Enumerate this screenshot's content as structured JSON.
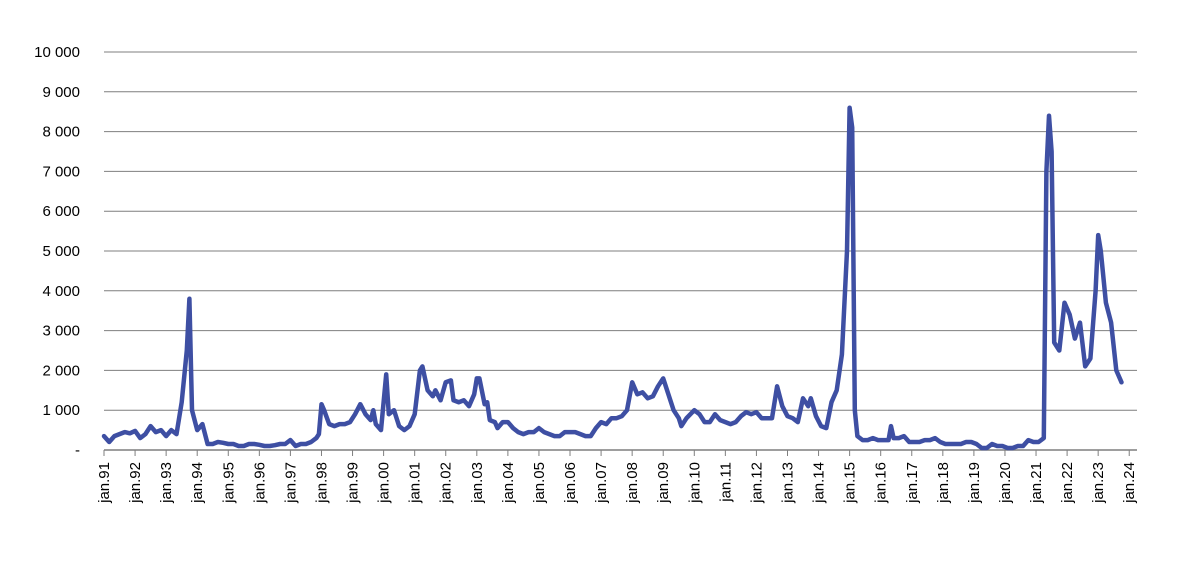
{
  "chart_data": {
    "type": "line",
    "title": "",
    "xlabel": "",
    "ylabel": "",
    "ylim": [
      0,
      10000
    ],
    "y_ticks": [
      {
        "value": 0,
        "label": "-"
      },
      {
        "value": 1000,
        "label": "1 000"
      },
      {
        "value": 2000,
        "label": "2 000"
      },
      {
        "value": 3000,
        "label": "3 000"
      },
      {
        "value": 4000,
        "label": "4 000"
      },
      {
        "value": 5000,
        "label": "5 000"
      },
      {
        "value": 6000,
        "label": "6 000"
      },
      {
        "value": 7000,
        "label": "7 000"
      },
      {
        "value": 8000,
        "label": "8 000"
      },
      {
        "value": 9000,
        "label": "9 000"
      },
      {
        "value": 10000,
        "label": "10 000"
      }
    ],
    "x_range": [
      "1991-01",
      "2024-04"
    ],
    "x_tick_labels": [
      "jan.91",
      "jan.92",
      "jan.93",
      "jan.94",
      "jan.95",
      "jan.96",
      "jan.97",
      "jan.98",
      "jan.99",
      "jan.00",
      "jan.01",
      "jan.02",
      "jan.03",
      "jan.04",
      "jan.05",
      "jan.06",
      "jan.07",
      "jan.08",
      "jan.09",
      "jan.10",
      "jan.11",
      "jan.12",
      "jan.13",
      "jan.14",
      "jan.15",
      "jan.16",
      "jan.17",
      "jan.18",
      "jan.19",
      "jan.20",
      "jan.21",
      "jan.22",
      "jan.23",
      "jan.24"
    ],
    "grid": true,
    "legend": "none",
    "colors": {
      "series": "#3e4fa3",
      "grid": "#7f7f7f",
      "axis": "#7f7f7f"
    },
    "series": [
      {
        "values": [
          [
            "1991-01",
            350
          ],
          [
            "1991-03",
            200
          ],
          [
            "1991-05",
            350
          ],
          [
            "1991-07",
            400
          ],
          [
            "1991-09",
            450
          ],
          [
            "1991-11",
            420
          ],
          [
            "1992-01",
            480
          ],
          [
            "1992-03",
            300
          ],
          [
            "1992-05",
            400
          ],
          [
            "1992-07",
            600
          ],
          [
            "1992-09",
            450
          ],
          [
            "1992-11",
            500
          ],
          [
            "1993-01",
            350
          ],
          [
            "1993-03",
            500
          ],
          [
            "1993-05",
            400
          ],
          [
            "1993-07",
            1200
          ],
          [
            "1993-09",
            2500
          ],
          [
            "1993-10",
            3800
          ],
          [
            "1993-11",
            1000
          ],
          [
            "1994-01",
            500
          ],
          [
            "1994-03",
            650
          ],
          [
            "1994-05",
            150
          ],
          [
            "1994-07",
            150
          ],
          [
            "1994-09",
            200
          ],
          [
            "1994-11",
            180
          ],
          [
            "1995-01",
            150
          ],
          [
            "1995-03",
            150
          ],
          [
            "1995-05",
            100
          ],
          [
            "1995-07",
            100
          ],
          [
            "1995-09",
            150
          ],
          [
            "1995-11",
            150
          ],
          [
            "1996-01",
            130
          ],
          [
            "1996-03",
            100
          ],
          [
            "1996-05",
            100
          ],
          [
            "1996-07",
            120
          ],
          [
            "1996-09",
            150
          ],
          [
            "1996-11",
            150
          ],
          [
            "1997-01",
            250
          ],
          [
            "1997-03",
            100
          ],
          [
            "1997-05",
            150
          ],
          [
            "1997-07",
            150
          ],
          [
            "1997-09",
            200
          ],
          [
            "1997-11",
            300
          ],
          [
            "1997-12",
            400
          ],
          [
            "1998-01",
            1150
          ],
          [
            "1998-02",
            1000
          ],
          [
            "1998-04",
            650
          ],
          [
            "1998-06",
            600
          ],
          [
            "1998-08",
            650
          ],
          [
            "1998-10",
            650
          ],
          [
            "1998-12",
            700
          ],
          [
            "1999-02",
            900
          ],
          [
            "1999-04",
            1150
          ],
          [
            "1999-06",
            900
          ],
          [
            "1999-08",
            750
          ],
          [
            "1999-09",
            1000
          ],
          [
            "1999-10",
            650
          ],
          [
            "1999-12",
            500
          ],
          [
            "2000-02",
            1900
          ],
          [
            "2000-03",
            900
          ],
          [
            "2000-05",
            1000
          ],
          [
            "2000-07",
            600
          ],
          [
            "2000-09",
            500
          ],
          [
            "2000-11",
            600
          ],
          [
            "2001-01",
            900
          ],
          [
            "2001-03",
            2000
          ],
          [
            "2001-04",
            2100
          ],
          [
            "2001-06",
            1500
          ],
          [
            "2001-08",
            1350
          ],
          [
            "2001-09",
            1500
          ],
          [
            "2001-11",
            1250
          ],
          [
            "2002-01",
            1700
          ],
          [
            "2002-03",
            1750
          ],
          [
            "2002-04",
            1250
          ],
          [
            "2002-06",
            1200
          ],
          [
            "2002-08",
            1250
          ],
          [
            "2002-10",
            1100
          ],
          [
            "2002-12",
            1400
          ],
          [
            "2003-01",
            1800
          ],
          [
            "2003-02",
            1800
          ],
          [
            "2003-04",
            1150
          ],
          [
            "2003-05",
            1200
          ],
          [
            "2003-06",
            750
          ],
          [
            "2003-08",
            700
          ],
          [
            "2003-09",
            550
          ],
          [
            "2003-11",
            700
          ],
          [
            "2004-01",
            700
          ],
          [
            "2004-03",
            550
          ],
          [
            "2004-05",
            450
          ],
          [
            "2004-07",
            400
          ],
          [
            "2004-09",
            450
          ],
          [
            "2004-11",
            450
          ],
          [
            "2005-01",
            550
          ],
          [
            "2005-03",
            450
          ],
          [
            "2005-05",
            400
          ],
          [
            "2005-07",
            350
          ],
          [
            "2005-09",
            350
          ],
          [
            "2005-11",
            450
          ],
          [
            "2006-01",
            450
          ],
          [
            "2006-03",
            450
          ],
          [
            "2006-05",
            400
          ],
          [
            "2006-07",
            350
          ],
          [
            "2006-09",
            350
          ],
          [
            "2006-11",
            550
          ],
          [
            "2007-01",
            700
          ],
          [
            "2007-03",
            650
          ],
          [
            "2007-05",
            800
          ],
          [
            "2007-07",
            800
          ],
          [
            "2007-09",
            850
          ],
          [
            "2007-11",
            1000
          ],
          [
            "2008-01",
            1700
          ],
          [
            "2008-03",
            1400
          ],
          [
            "2008-05",
            1450
          ],
          [
            "2008-07",
            1300
          ],
          [
            "2008-09",
            1350
          ],
          [
            "2008-11",
            1600
          ],
          [
            "2009-01",
            1800
          ],
          [
            "2009-03",
            1400
          ],
          [
            "2009-05",
            1000
          ],
          [
            "2009-07",
            800
          ],
          [
            "2009-08",
            600
          ],
          [
            "2009-10",
            800
          ],
          [
            "2010-01",
            1000
          ],
          [
            "2010-03",
            900
          ],
          [
            "2010-05",
            700
          ],
          [
            "2010-07",
            700
          ],
          [
            "2010-09",
            900
          ],
          [
            "2010-11",
            750
          ],
          [
            "2011-01",
            700
          ],
          [
            "2011-03",
            650
          ],
          [
            "2011-05",
            700
          ],
          [
            "2011-07",
            850
          ],
          [
            "2011-09",
            950
          ],
          [
            "2011-11",
            900
          ],
          [
            "2012-01",
            950
          ],
          [
            "2012-03",
            800
          ],
          [
            "2012-05",
            800
          ],
          [
            "2012-07",
            800
          ],
          [
            "2012-09",
            1600
          ],
          [
            "2012-11",
            1100
          ],
          [
            "2013-01",
            850
          ],
          [
            "2013-03",
            800
          ],
          [
            "2013-05",
            700
          ],
          [
            "2013-07",
            1300
          ],
          [
            "2013-09",
            1100
          ],
          [
            "2013-10",
            1300
          ],
          [
            "2013-12",
            850
          ],
          [
            "2014-02",
            600
          ],
          [
            "2014-04",
            550
          ],
          [
            "2014-06",
            1200
          ],
          [
            "2014-08",
            1500
          ],
          [
            "2014-10",
            2400
          ],
          [
            "2014-12",
            5000
          ],
          [
            "2015-01",
            8600
          ],
          [
            "2015-02",
            8100
          ],
          [
            "2015-03",
            1000
          ],
          [
            "2015-04",
            350
          ],
          [
            "2015-06",
            250
          ],
          [
            "2015-08",
            250
          ],
          [
            "2015-10",
            300
          ],
          [
            "2015-12",
            250
          ],
          [
            "2016-02",
            250
          ],
          [
            "2016-04",
            250
          ],
          [
            "2016-05",
            600
          ],
          [
            "2016-06",
            300
          ],
          [
            "2016-08",
            300
          ],
          [
            "2016-10",
            350
          ],
          [
            "2016-12",
            200
          ],
          [
            "2017-02",
            200
          ],
          [
            "2017-04",
            200
          ],
          [
            "2017-06",
            250
          ],
          [
            "2017-08",
            250
          ],
          [
            "2017-10",
            300
          ],
          [
            "2017-12",
            200
          ],
          [
            "2018-02",
            150
          ],
          [
            "2018-04",
            150
          ],
          [
            "2018-06",
            150
          ],
          [
            "2018-08",
            150
          ],
          [
            "2018-10",
            200
          ],
          [
            "2018-12",
            200
          ],
          [
            "2019-02",
            150
          ],
          [
            "2019-04",
            50
          ],
          [
            "2019-06",
            50
          ],
          [
            "2019-08",
            150
          ],
          [
            "2019-10",
            100
          ],
          [
            "2019-12",
            100
          ],
          [
            "2020-02",
            50
          ],
          [
            "2020-04",
            50
          ],
          [
            "2020-06",
            100
          ],
          [
            "2020-08",
            100
          ],
          [
            "2020-10",
            250
          ],
          [
            "2020-12",
            200
          ],
          [
            "2021-02",
            200
          ],
          [
            "2021-04",
            300
          ],
          [
            "2021-05",
            7000
          ],
          [
            "2021-06",
            8400
          ],
          [
            "2021-07",
            7500
          ],
          [
            "2021-08",
            2700
          ],
          [
            "2021-10",
            2500
          ],
          [
            "2021-12",
            3700
          ],
          [
            "2022-02",
            3400
          ],
          [
            "2022-04",
            2800
          ],
          [
            "2022-06",
            3200
          ],
          [
            "2022-08",
            2100
          ],
          [
            "2022-10",
            2300
          ],
          [
            "2022-12",
            4000
          ],
          [
            "2023-01",
            5400
          ],
          [
            "2023-02",
            5000
          ],
          [
            "2023-04",
            3700
          ],
          [
            "2023-06",
            3200
          ],
          [
            "2023-08",
            2000
          ],
          [
            "2023-10",
            1700
          ]
        ]
      }
    ]
  }
}
